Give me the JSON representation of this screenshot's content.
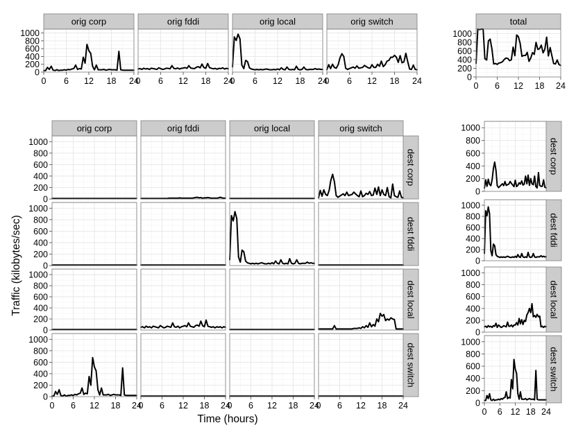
{
  "chart_data": {
    "type": "line",
    "xlabel": "Time (hours)",
    "ylabel": "Traffic (kilobytes/sec)",
    "xlim": [
      0,
      24
    ],
    "ylim": [
      0,
      1100
    ],
    "x_ticks": [
      0,
      6,
      12,
      18,
      24
    ],
    "y_ticks": [
      0,
      200,
      400,
      600,
      800,
      1000
    ],
    "grid": true,
    "origins": [
      "orig corp",
      "orig fddi",
      "orig local",
      "orig switch"
    ],
    "destinations": [
      "dest corp",
      "dest fddi",
      "dest local",
      "dest switch"
    ],
    "total_label": "total",
    "x": [
      0,
      0.5,
      1,
      1.5,
      2,
      2.5,
      3,
      3.5,
      4,
      4.5,
      5,
      5.5,
      6,
      6.5,
      7,
      7.5,
      8,
      8.5,
      9,
      9.5,
      10,
      10.5,
      11,
      11.5,
      12,
      12.5,
      13,
      13.5,
      14,
      14.5,
      15,
      15.5,
      16,
      16.5,
      17,
      17.5,
      18,
      18.5,
      19,
      19.5,
      20,
      20.5,
      21,
      21.5,
      22,
      22.5,
      23,
      23.5,
      24
    ],
    "matrix": [
      {
        "orig": "orig corp",
        "dest": "dest corp",
        "values": [
          10,
          10,
          10,
          10,
          10,
          10,
          10,
          10,
          10,
          10,
          10,
          10,
          10,
          10,
          10,
          10,
          10,
          10,
          10,
          10,
          10,
          10,
          10,
          10,
          10,
          10,
          10,
          10,
          10,
          10,
          10,
          10,
          10,
          10,
          10,
          10,
          10,
          10,
          10,
          10,
          10,
          10,
          10,
          10,
          10,
          10,
          10,
          10,
          10
        ]
      },
      {
        "orig": "orig fddi",
        "dest": "dest corp",
        "values": [
          10,
          10,
          10,
          10,
          10,
          10,
          10,
          10,
          10,
          10,
          10,
          10,
          10,
          10,
          10,
          10,
          15,
          15,
          15,
          15,
          15,
          15,
          20,
          15,
          15,
          15,
          15,
          15,
          15,
          15,
          20,
          25,
          30,
          20,
          25,
          15,
          20,
          20,
          25,
          20,
          15,
          15,
          15,
          15,
          20,
          30,
          20,
          15,
          15
        ]
      },
      {
        "orig": "orig local",
        "dest": "dest corp",
        "values": [
          10,
          10,
          10,
          10,
          10,
          10,
          10,
          10,
          10,
          10,
          10,
          10,
          10,
          10,
          10,
          10,
          10,
          10,
          10,
          10,
          10,
          10,
          10,
          10,
          10,
          10,
          10,
          10,
          10,
          10,
          10,
          10,
          10,
          10,
          10,
          10,
          10,
          10,
          10,
          10,
          10,
          10,
          10,
          10,
          10,
          10,
          10,
          10,
          10
        ]
      },
      {
        "orig": "orig switch",
        "dest": "dest corp",
        "values": [
          20,
          150,
          50,
          160,
          80,
          60,
          150,
          330,
          430,
          300,
          60,
          30,
          50,
          70,
          90,
          60,
          120,
          60,
          70,
          80,
          120,
          90,
          60,
          40,
          140,
          40,
          60,
          100,
          80,
          130,
          60,
          70,
          190,
          80,
          210,
          60,
          160,
          80,
          60,
          200,
          40,
          20,
          260,
          60,
          40,
          30,
          140,
          30,
          20
        ]
      },
      {
        "orig": "orig corp",
        "dest": "dest fddi",
        "values": [
          10,
          10,
          10,
          10,
          10,
          10,
          10,
          10,
          10,
          10,
          10,
          10,
          10,
          10,
          10,
          10,
          10,
          10,
          10,
          10,
          10,
          10,
          10,
          10,
          10,
          10,
          10,
          10,
          10,
          10,
          10,
          10,
          10,
          10,
          10,
          10,
          10,
          10,
          10,
          10,
          10,
          10,
          10,
          10,
          10,
          10,
          10,
          10,
          10
        ]
      },
      {
        "orig": "orig fddi",
        "dest": "dest fddi",
        "values": [
          10,
          10,
          10,
          10,
          10,
          10,
          10,
          10,
          10,
          10,
          10,
          10,
          10,
          10,
          10,
          10,
          10,
          10,
          10,
          10,
          10,
          10,
          10,
          10,
          10,
          10,
          10,
          10,
          10,
          10,
          10,
          10,
          10,
          10,
          10,
          10,
          10,
          10,
          10,
          10,
          10,
          10,
          10,
          10,
          10,
          10,
          10,
          10,
          10
        ]
      },
      {
        "orig": "orig local",
        "dest": "dest fddi",
        "values": [
          100,
          870,
          780,
          940,
          820,
          150,
          60,
          270,
          240,
          80,
          50,
          40,
          30,
          40,
          30,
          40,
          30,
          40,
          50,
          40,
          30,
          30,
          40,
          30,
          50,
          30,
          80,
          40,
          30,
          100,
          40,
          30,
          40,
          30,
          120,
          40,
          30,
          40,
          100,
          40,
          30,
          40,
          40,
          40,
          60,
          40,
          50,
          40,
          40
        ]
      },
      {
        "orig": "orig switch",
        "dest": "dest fddi",
        "values": [
          10,
          10,
          10,
          10,
          10,
          10,
          10,
          10,
          10,
          10,
          10,
          10,
          10,
          10,
          10,
          10,
          10,
          10,
          10,
          10,
          10,
          10,
          10,
          10,
          10,
          10,
          10,
          10,
          10,
          10,
          10,
          10,
          10,
          10,
          10,
          10,
          10,
          10,
          10,
          10,
          10,
          10,
          10,
          10,
          10,
          10,
          10,
          10,
          10
        ]
      },
      {
        "orig": "orig corp",
        "dest": "dest local",
        "values": [
          10,
          10,
          10,
          10,
          10,
          10,
          10,
          10,
          10,
          10,
          10,
          10,
          10,
          10,
          10,
          10,
          10,
          10,
          10,
          10,
          10,
          10,
          10,
          10,
          10,
          10,
          10,
          10,
          10,
          10,
          10,
          10,
          10,
          10,
          10,
          10,
          10,
          10,
          10,
          10,
          10,
          10,
          10,
          10,
          10,
          10,
          10,
          10,
          10
        ]
      },
      {
        "orig": "orig fddi",
        "dest": "dest local",
        "values": [
          50,
          60,
          40,
          70,
          50,
          60,
          40,
          70,
          60,
          50,
          40,
          80,
          60,
          40,
          50,
          70,
          60,
          50,
          130,
          60,
          50,
          70,
          40,
          60,
          70,
          80,
          60,
          130,
          70,
          60,
          50,
          80,
          90,
          70,
          160,
          80,
          60,
          180,
          70,
          60,
          50,
          60,
          40,
          60,
          50,
          60,
          40,
          60,
          50
        ]
      },
      {
        "orig": "orig local",
        "dest": "dest local",
        "values": [
          10,
          10,
          10,
          10,
          10,
          10,
          10,
          10,
          10,
          10,
          10,
          10,
          10,
          10,
          10,
          10,
          10,
          10,
          10,
          10,
          10,
          10,
          10,
          10,
          10,
          10,
          10,
          10,
          10,
          10,
          10,
          10,
          10,
          10,
          10,
          10,
          10,
          10,
          10,
          10,
          10,
          10,
          10,
          10,
          10,
          10,
          10,
          10,
          10
        ]
      },
      {
        "orig": "orig switch",
        "dest": "dest local",
        "values": [
          20,
          20,
          20,
          20,
          20,
          20,
          20,
          20,
          20,
          80,
          20,
          20,
          20,
          20,
          20,
          20,
          20,
          20,
          20,
          20,
          30,
          30,
          30,
          40,
          30,
          60,
          40,
          80,
          50,
          130,
          60,
          100,
          70,
          200,
          150,
          300,
          250,
          280,
          170,
          200,
          180,
          220,
          200,
          190,
          20,
          20,
          20,
          20,
          20
        ]
      },
      {
        "orig": "orig corp",
        "dest": "dest switch",
        "values": [
          10,
          10,
          90,
          40,
          120,
          20,
          10,
          30,
          10,
          20,
          20,
          30,
          20,
          40,
          30,
          50,
          60,
          150,
          40,
          60,
          50,
          350,
          200,
          680,
          520,
          450,
          120,
          30,
          150,
          30,
          30,
          30,
          40,
          20,
          30,
          40,
          30,
          30,
          30,
          20,
          500,
          30,
          20,
          20,
          20,
          20,
          20,
          20,
          20
        ]
      },
      {
        "orig": "orig fddi",
        "dest": "dest switch",
        "values": [
          10,
          10,
          10,
          10,
          10,
          10,
          10,
          10,
          10,
          10,
          10,
          10,
          10,
          10,
          10,
          10,
          10,
          10,
          10,
          10,
          10,
          10,
          10,
          10,
          10,
          10,
          10,
          10,
          10,
          10,
          10,
          10,
          10,
          10,
          10,
          10,
          10,
          10,
          10,
          10,
          10,
          10,
          10,
          10,
          10,
          10,
          10,
          10,
          10
        ]
      },
      {
        "orig": "orig local",
        "dest": "dest switch",
        "values": [
          10,
          10,
          10,
          10,
          10,
          10,
          10,
          10,
          10,
          10,
          10,
          10,
          10,
          10,
          10,
          10,
          10,
          10,
          10,
          10,
          10,
          10,
          10,
          10,
          10,
          10,
          10,
          10,
          10,
          10,
          10,
          10,
          10,
          10,
          10,
          10,
          10,
          10,
          10,
          10,
          10,
          10,
          10,
          10,
          10,
          10,
          10,
          10,
          10
        ]
      },
      {
        "orig": "orig switch",
        "dest": "dest switch",
        "values": [
          10,
          10,
          10,
          10,
          10,
          10,
          10,
          10,
          10,
          10,
          10,
          10,
          10,
          10,
          10,
          10,
          10,
          10,
          10,
          10,
          10,
          10,
          10,
          10,
          10,
          10,
          10,
          10,
          10,
          10,
          10,
          10,
          10,
          10,
          10,
          10,
          10,
          10,
          10,
          10,
          10,
          10,
          10,
          10,
          10,
          10,
          10,
          10,
          10
        ]
      }
    ]
  }
}
